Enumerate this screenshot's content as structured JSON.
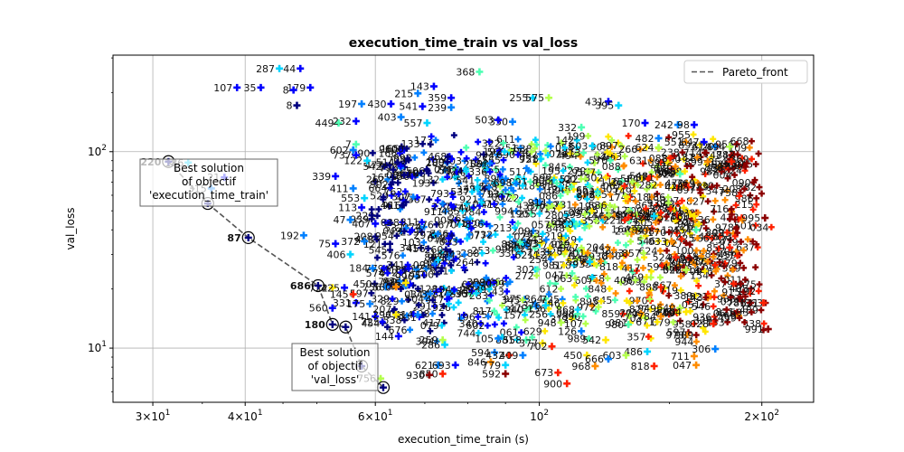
{
  "chart_data": {
    "type": "scatter",
    "title": "execution_time_train vs val_loss",
    "xlabel": "execution_time_train (s)",
    "ylabel": "val_loss",
    "xscale": "log",
    "yscale": "log",
    "xlim": [
      26.5,
      235
    ],
    "ylim": [
      5.3,
      310
    ],
    "grid": true,
    "x_ticks": [
      {
        "value": 30,
        "base": "3",
        "exp": "1"
      },
      {
        "value": 40,
        "base": "4",
        "exp": "1"
      },
      {
        "value": 60,
        "base": "6",
        "exp": "1"
      },
      {
        "value": 100,
        "base": "10",
        "exp": "2"
      },
      {
        "value": 200,
        "base": "2",
        "exp": "2"
      }
    ],
    "y_ticks": [
      {
        "value": 10,
        "base": "10",
        "exp": "1"
      },
      {
        "value": 100,
        "base": "10",
        "exp": "2"
      }
    ],
    "legend": {
      "position": "top-right",
      "entries": [
        {
          "name": "Pareto_front",
          "color": "#555555",
          "style": "dashed"
        }
      ]
    },
    "colors": [
      "#00007f",
      "#0000ff",
      "#0080ff",
      "#00d4ff",
      "#4dffb3",
      "#b3ff4d",
      "#ffe600",
      "#ff8c00",
      "#ff2000",
      "#8b0000"
    ],
    "pareto_front": {
      "x": [
        31.5,
        35.6,
        40.4,
        50.2,
        52.5,
        54.7,
        57.5,
        61.5
      ],
      "y": [
        89,
        54.5,
        36.5,
        20.8,
        13.2,
        12.8,
        8.1,
        6.3
      ],
      "labels": [
        "220",
        "",
        "87",
        "686",
        "180",
        "",
        "",
        ""
      ]
    },
    "best_solutions": [
      {
        "objective": "execution_time_train",
        "lines": [
          "Best solution",
          "of objectif",
          "'execution_time_train'"
        ]
      },
      {
        "objective": "val_loss",
        "lines": [
          "Best solution",
          "of objectif",
          "'val_loss'"
        ]
      }
    ],
    "labeled_points": [
      {
        "label": "287",
        "x": 44.5,
        "y": 265,
        "c": 3
      },
      {
        "label": "44",
        "x": 47.5,
        "y": 265,
        "c": 1
      },
      {
        "label": "107",
        "x": 39.0,
        "y": 212,
        "c": 1
      },
      {
        "label": "35",
        "x": 42.0,
        "y": 212,
        "c": 1
      },
      {
        "label": "179",
        "x": 49.0,
        "y": 212,
        "c": 1
      },
      {
        "label": "8",
        "x": 46.5,
        "y": 206,
        "c": 1
      },
      {
        "label": "8",
        "x": 47.0,
        "y": 172,
        "c": 0
      },
      {
        "label": "368",
        "x": 83.0,
        "y": 255,
        "c": 4
      },
      {
        "label": "143",
        "x": 72.0,
        "y": 215,
        "c": 1
      },
      {
        "label": "215",
        "x": 68.5,
        "y": 198,
        "c": 2
      },
      {
        "label": "359",
        "x": 76.0,
        "y": 188,
        "c": 1
      },
      {
        "label": "197",
        "x": 57.5,
        "y": 175,
        "c": 2
      },
      {
        "label": "430",
        "x": 63.0,
        "y": 175,
        "c": 1
      },
      {
        "label": "541",
        "x": 69.5,
        "y": 170,
        "c": 1
      },
      {
        "label": "239",
        "x": 76.0,
        "y": 168,
        "c": 2
      },
      {
        "label": "255",
        "x": 98.0,
        "y": 188,
        "c": 3
      },
      {
        "label": "575",
        "x": 103.0,
        "y": 188,
        "c": 5
      },
      {
        "label": "431",
        "x": 124.0,
        "y": 180,
        "c": 1
      },
      {
        "label": "395",
        "x": 128.0,
        "y": 172,
        "c": 3
      },
      {
        "label": "403",
        "x": 65.0,
        "y": 150,
        "c": 2
      },
      {
        "label": "449",
        "x": 53.5,
        "y": 140,
        "c": 4
      },
      {
        "label": "232",
        "x": 56.5,
        "y": 143,
        "c": 1
      },
      {
        "label": "557",
        "x": 70.5,
        "y": 140,
        "c": 3
      },
      {
        "label": "350",
        "x": 92.0,
        "y": 142,
        "c": 2
      },
      {
        "label": "503",
        "x": 88.0,
        "y": 145,
        "c": 1
      },
      {
        "label": "170",
        "x": 139.0,
        "y": 140,
        "c": 1
      },
      {
        "label": "242",
        "x": 154.0,
        "y": 137,
        "c": 2
      },
      {
        "label": "98",
        "x": 162.0,
        "y": 137,
        "c": 1
      },
      {
        "label": "332",
        "x": 114.0,
        "y": 133,
        "c": 4
      },
      {
        "label": "482",
        "x": 145.0,
        "y": 117,
        "c": 2
      },
      {
        "label": "647",
        "x": 167.0,
        "y": 112,
        "c": 1
      },
      {
        "label": "614",
        "x": 173.0,
        "y": 106,
        "c": 2
      },
      {
        "label": "494",
        "x": 181.0,
        "y": 106,
        "c": 5
      },
      {
        "label": "603",
        "x": 118.0,
        "y": 107,
        "c": 3
      },
      {
        "label": "624",
        "x": 145.0,
        "y": 105,
        "c": 5
      },
      {
        "label": "7",
        "x": 56.5,
        "y": 109,
        "c": 4
      },
      {
        "label": "602",
        "x": 56.0,
        "y": 102,
        "c": 2
      },
      {
        "label": "737",
        "x": 56.5,
        "y": 96,
        "c": 1
      },
      {
        "label": "122",
        "x": 58.5,
        "y": 90,
        "c": 3
      },
      {
        "label": "854",
        "x": 182.0,
        "y": 89,
        "c": 8
      },
      {
        "label": "899",
        "x": 169.0,
        "y": 89,
        "c": 7
      },
      {
        "label": "529",
        "x": 155.0,
        "y": 77,
        "c": 4
      },
      {
        "label": "339",
        "x": 53.0,
        "y": 75,
        "c": 1
      },
      {
        "label": "411",
        "x": 56.0,
        "y": 65,
        "c": 2
      },
      {
        "label": "428",
        "x": 159.0,
        "y": 66,
        "c": 8
      },
      {
        "label": "697",
        "x": 165.0,
        "y": 64,
        "c": 9
      },
      {
        "label": "553",
        "x": 58.0,
        "y": 58,
        "c": 3
      },
      {
        "label": "113",
        "x": 57.5,
        "y": 52,
        "c": 1
      },
      {
        "label": "959",
        "x": 143.0,
        "y": 47,
        "c": 3
      },
      {
        "label": "860",
        "x": 162.0,
        "y": 47,
        "c": 6
      },
      {
        "label": "995",
        "x": 202.0,
        "y": 46,
        "c": 9
      },
      {
        "label": "47",
        "x": 55.5,
        "y": 45,
        "c": 2
      },
      {
        "label": "454",
        "x": 163.0,
        "y": 40,
        "c": 4
      },
      {
        "label": "407",
        "x": 60.0,
        "y": 43,
        "c": 1
      },
      {
        "label": "192",
        "x": 48.0,
        "y": 37.5,
        "c": 2
      },
      {
        "label": "75",
        "x": 53.0,
        "y": 34,
        "c": 1
      },
      {
        "label": "372",
        "x": 58.0,
        "y": 35,
        "c": 2
      },
      {
        "label": "033",
        "x": 151.0,
        "y": 35,
        "c": 7
      },
      {
        "label": "859",
        "x": 181.0,
        "y": 32.5,
        "c": 8
      },
      {
        "label": "406",
        "x": 55.5,
        "y": 30,
        "c": 3
      },
      {
        "label": "524",
        "x": 153.0,
        "y": 29,
        "c": 8
      },
      {
        "label": "537",
        "x": 117.0,
        "y": 27.5,
        "c": 3
      },
      {
        "label": "398",
        "x": 158.0,
        "y": 25,
        "c": 5
      },
      {
        "label": "184",
        "x": 59.5,
        "y": 25.5,
        "c": 2
      },
      {
        "label": "835",
        "x": 66.0,
        "y": 21.5,
        "c": 6
      },
      {
        "label": "756",
        "x": 62.0,
        "y": 20.5,
        "c": 2
      },
      {
        "label": "560",
        "x": 64.0,
        "y": 20.5,
        "c": 7
      },
      {
        "label": "722",
        "x": 52.5,
        "y": 20.3,
        "c": 6
      },
      {
        "label": "425",
        "x": 54.5,
        "y": 20.3,
        "c": 1
      },
      {
        "label": "145",
        "x": 56.0,
        "y": 18.8,
        "c": 8
      },
      {
        "label": "781",
        "x": 193.0,
        "y": 17,
        "c": 9
      },
      {
        "label": "621",
        "x": 201.0,
        "y": 17,
        "c": 8
      },
      {
        "label": "331",
        "x": 56.5,
        "y": 17,
        "c": 1
      },
      {
        "label": "175",
        "x": 59.0,
        "y": 16.8,
        "c": 2
      },
      {
        "label": "376",
        "x": 102.0,
        "y": 16.5,
        "c": 3
      },
      {
        "label": "640",
        "x": 155.0,
        "y": 16,
        "c": 5
      },
      {
        "label": "604",
        "x": 158.0,
        "y": 15.3,
        "c": 6
      },
      {
        "label": "560",
        "x": 52.5,
        "y": 16,
        "c": 1
      },
      {
        "label": "414",
        "x": 68.5,
        "y": 14.8,
        "c": 2
      },
      {
        "label": "141",
        "x": 60.0,
        "y": 14.5,
        "c": 1
      },
      {
        "label": "296",
        "x": 64.0,
        "y": 14.8,
        "c": 6
      },
      {
        "label": "784",
        "x": 146.0,
        "y": 14.5,
        "c": 7
      },
      {
        "label": "028",
        "x": 172.0,
        "y": 13.3,
        "c": 8
      },
      {
        "label": "991",
        "x": 204.0,
        "y": 12.5,
        "c": 9
      },
      {
        "label": "948",
        "x": 107.0,
        "y": 13.5,
        "c": 5
      },
      {
        "label": "980",
        "x": 132.0,
        "y": 13.2,
        "c": 4
      },
      {
        "label": "126",
        "x": 114.0,
        "y": 12.2,
        "c": 2
      },
      {
        "label": "144",
        "x": 64.5,
        "y": 11.5,
        "c": 1
      },
      {
        "label": "542",
        "x": 123.0,
        "y": 11.0,
        "c": 6
      },
      {
        "label": "306",
        "x": 173.0,
        "y": 9.9,
        "c": 2
      },
      {
        "label": "486",
        "x": 140.0,
        "y": 9.6,
        "c": 3
      },
      {
        "label": "603",
        "x": 131.0,
        "y": 9.2,
        "c": 5
      },
      {
        "label": "711",
        "x": 162.0,
        "y": 9.1,
        "c": 7
      },
      {
        "label": "594",
        "x": 87.0,
        "y": 9.5,
        "c": 2
      },
      {
        "label": "259",
        "x": 74.0,
        "y": 11.0,
        "c": 5
      },
      {
        "label": "286",
        "x": 74.5,
        "y": 10.4,
        "c": 3
      },
      {
        "label": "105",
        "x": 88.0,
        "y": 11.2,
        "c": 2
      },
      {
        "label": "558",
        "x": 96.0,
        "y": 11.0,
        "c": 4
      },
      {
        "label": "377",
        "x": 101.0,
        "y": 10.6,
        "c": 6
      },
      {
        "label": "702",
        "x": 104.0,
        "y": 10.2,
        "c": 8
      },
      {
        "label": "450",
        "x": 116.0,
        "y": 9.2,
        "c": 6
      },
      {
        "label": "432",
        "x": 91.0,
        "y": 9.2,
        "c": 8
      },
      {
        "label": "409",
        "x": 95.0,
        "y": 9.2,
        "c": 2
      },
      {
        "label": "846",
        "x": 86.0,
        "y": 8.5,
        "c": 7
      },
      {
        "label": "621",
        "x": 73.0,
        "y": 8.2,
        "c": 2
      },
      {
        "label": "693",
        "x": 77.0,
        "y": 8.2,
        "c": 1
      },
      {
        "label": "779",
        "x": 90.0,
        "y": 8.2,
        "c": 3
      },
      {
        "label": "968",
        "x": 119.0,
        "y": 8.1,
        "c": 7
      },
      {
        "label": "666",
        "x": 124.0,
        "y": 8.8,
        "c": 2
      },
      {
        "label": "047",
        "x": 163.0,
        "y": 8.2,
        "c": 7
      },
      {
        "label": "818",
        "x": 143.0,
        "y": 8.1,
        "c": 8
      },
      {
        "label": "850",
        "x": 74.0,
        "y": 7.4,
        "c": 8
      },
      {
        "label": "592",
        "x": 90.0,
        "y": 7.4,
        "c": 9
      },
      {
        "label": "673",
        "x": 106.0,
        "y": 7.5,
        "c": 8
      },
      {
        "label": "900",
        "x": 109.0,
        "y": 6.6,
        "c": 8
      },
      {
        "label": "930",
        "x": 71.0,
        "y": 7.3,
        "c": 9
      },
      {
        "label": "756",
        "x": 61.0,
        "y": 7.0,
        "c": 5
      },
      {
        "label": "186",
        "x": 33.5,
        "y": 88,
        "c": 3
      },
      {
        "label": "315",
        "x": 36.0,
        "y": 65,
        "c": 2
      },
      {
        "label": "21",
        "x": 37.5,
        "y": 74,
        "c": 1
      }
    ]
  }
}
